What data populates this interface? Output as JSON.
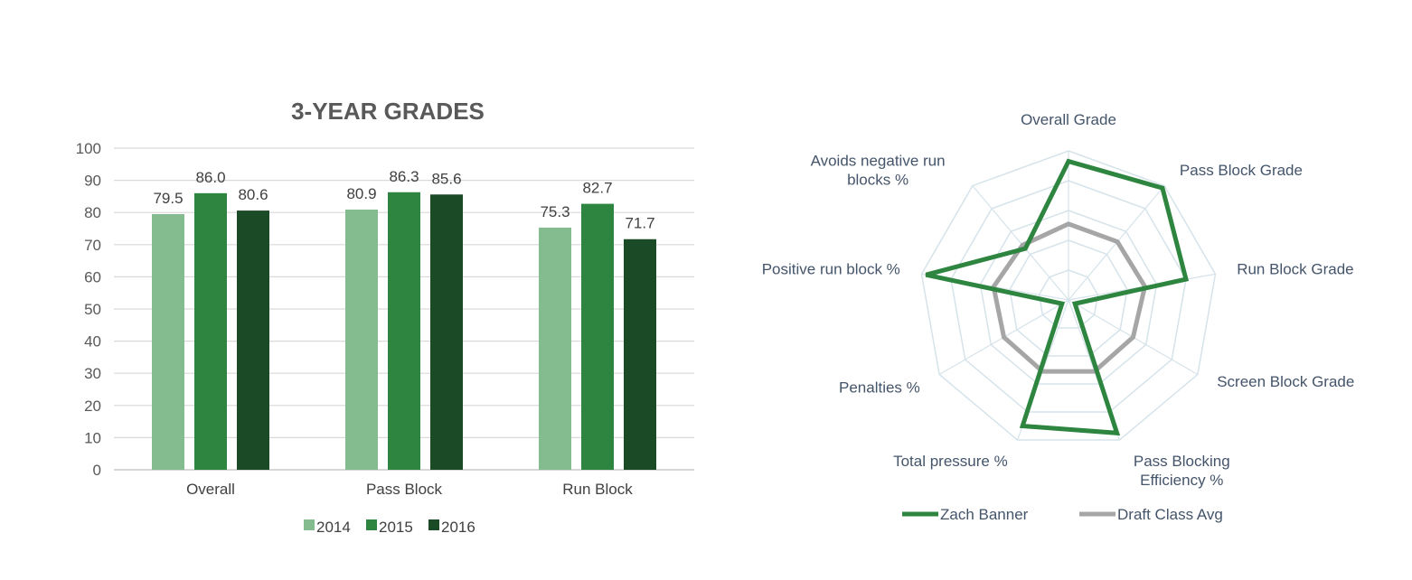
{
  "chart_data": [
    {
      "type": "bar",
      "title": "3-YEAR GRADES",
      "categories": [
        "Overall",
        "Pass Block",
        "Run Block"
      ],
      "series": [
        {
          "name": "2014",
          "values": [
            79.5,
            80.9,
            75.3
          ],
          "color": "#84bc8f",
          "labels": [
            "79.5",
            "80.9",
            "75.3"
          ]
        },
        {
          "name": "2015",
          "values": [
            86.0,
            86.3,
            82.7
          ],
          "color": "#2e8540",
          "labels": [
            "86.0",
            "86.3",
            "82.7"
          ]
        },
        {
          "name": "2016",
          "values": [
            80.6,
            85.6,
            71.7
          ],
          "color": "#1a4a26",
          "labels": [
            "80.6",
            "85.6",
            "71.7"
          ]
        }
      ],
      "ylim": [
        0,
        100
      ],
      "yticks": [
        0,
        10,
        20,
        30,
        40,
        50,
        60,
        70,
        80,
        90,
        100
      ],
      "grid": true,
      "legend": "bottom"
    },
    {
      "type": "radar",
      "axes": [
        "Overall Grade",
        "Pass Block Grade",
        "Run Block Grade",
        "Screen Block Grade",
        "Pass Blocking Efficiency %",
        "Total pressure %",
        "Penalties %",
        "Positive run block %",
        "Avoids negative run blocks %"
      ],
      "axis_label_lines": [
        [
          "Overall Grade"
        ],
        [
          "Pass Block Grade"
        ],
        [
          "Run Block Grade"
        ],
        [
          "Screen Block Grade"
        ],
        [
          "Pass Blocking",
          "Efficiency %"
        ],
        [
          "Total pressure %"
        ],
        [
          "Penalties %"
        ],
        [
          "Positive run block %"
        ],
        [
          "Avoids negative run",
          "blocks %"
        ]
      ],
      "rlim": [
        0,
        100
      ],
      "series": [
        {
          "name": "Zach Banner",
          "values": [
            93,
            98,
            80,
            5,
            95,
            90,
            5,
            97,
            45
          ],
          "color": "#2e8540"
        },
        {
          "name": "Draft Class Avg",
          "values": [
            51,
            51,
            52,
            50,
            51,
            51,
            50,
            51,
            48
          ],
          "color": "#a6a6a6"
        }
      ],
      "grid_color": "#d6e3ea",
      "legend": "bottom"
    }
  ]
}
